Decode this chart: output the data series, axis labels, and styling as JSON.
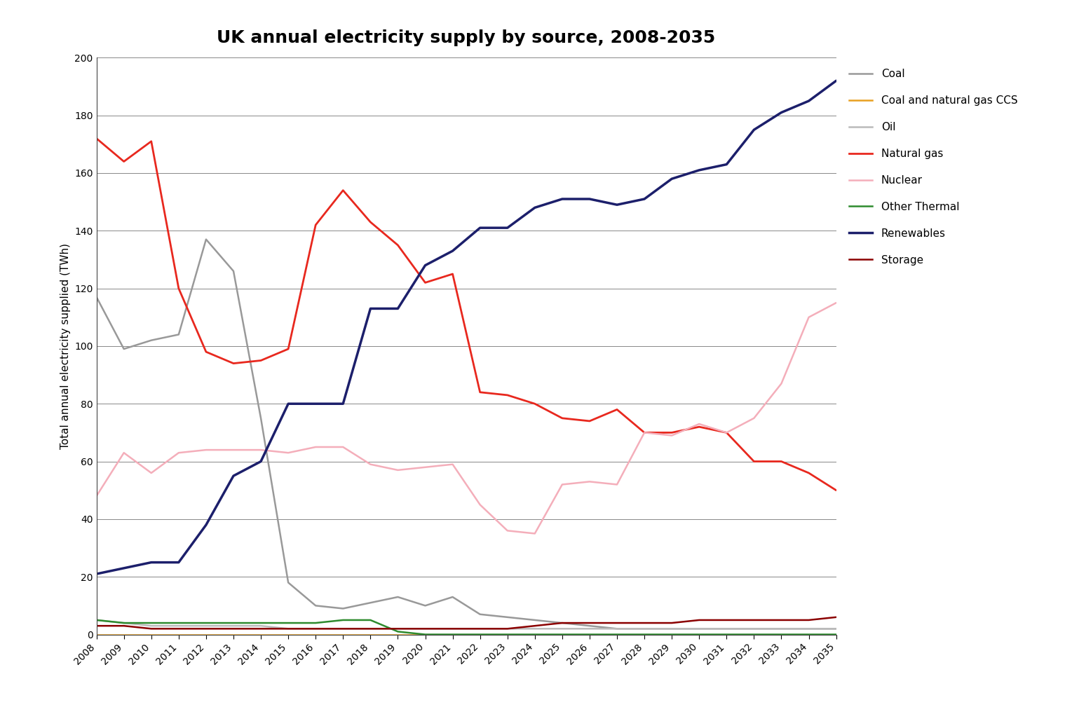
{
  "title": "UK annual electricity supply by source, 2008-2035",
  "ylabel": "Total annual electricity supplied (TWh)",
  "years": [
    2008,
    2009,
    2010,
    2011,
    2012,
    2013,
    2014,
    2015,
    2016,
    2017,
    2018,
    2019,
    2020,
    2021,
    2022,
    2023,
    2024,
    2025,
    2026,
    2027,
    2028,
    2029,
    2030,
    2031,
    2032,
    2033,
    2034,
    2035
  ],
  "ylim": [
    0,
    200
  ],
  "yticks": [
    0,
    20,
    40,
    60,
    80,
    100,
    120,
    140,
    160,
    180,
    200
  ],
  "series": {
    "Coal": {
      "color": "#999999",
      "linewidth": 1.8,
      "values": [
        117,
        99,
        102,
        104,
        137,
        126,
        75,
        18,
        10,
        9,
        11,
        13,
        10,
        13,
        7,
        6,
        5,
        4,
        3,
        2,
        2,
        2,
        2,
        2,
        2,
        2,
        2,
        2
      ]
    },
    "Coal and natural gas CCS": {
      "color": "#E8A020",
      "linewidth": 1.8,
      "values": [
        0,
        0,
        0,
        0,
        0,
        0,
        0,
        0,
        0,
        0,
        0,
        0,
        0,
        0,
        0,
        0,
        0,
        0,
        0,
        0,
        0,
        0,
        0,
        0,
        0,
        0,
        0,
        0
      ]
    },
    "Oil": {
      "color": "#BBBBBB",
      "linewidth": 1.8,
      "values": [
        5,
        4,
        3,
        3,
        3,
        3,
        3,
        2,
        2,
        2,
        2,
        2,
        2,
        2,
        2,
        2,
        2,
        2,
        2,
        2,
        2,
        2,
        2,
        2,
        2,
        2,
        2,
        2
      ]
    },
    "Natural gas": {
      "color": "#E8281E",
      "linewidth": 2.0,
      "values": [
        172,
        164,
        171,
        120,
        98,
        94,
        95,
        99,
        142,
        154,
        143,
        135,
        122,
        125,
        84,
        83,
        80,
        75,
        74,
        78,
        70,
        70,
        72,
        70,
        60,
        60,
        56,
        50
      ]
    },
    "Nuclear": {
      "color": "#F4AEBA",
      "linewidth": 1.8,
      "values": [
        48,
        63,
        56,
        63,
        64,
        64,
        64,
        63,
        65,
        65,
        59,
        57,
        58,
        59,
        45,
        36,
        35,
        52,
        53,
        52,
        70,
        69,
        73,
        70,
        75,
        87,
        110,
        115
      ]
    },
    "Other Thermal": {
      "color": "#2E8B2E",
      "linewidth": 1.8,
      "values": [
        5,
        4,
        4,
        4,
        4,
        4,
        4,
        4,
        4,
        5,
        5,
        1,
        0,
        0,
        0,
        0,
        0,
        0,
        0,
        0,
        0,
        0,
        0,
        0,
        0,
        0,
        0,
        0
      ]
    },
    "Renewables": {
      "color": "#1C1F6B",
      "linewidth": 2.5,
      "values": [
        21,
        23,
        25,
        25,
        38,
        55,
        60,
        80,
        80,
        80,
        113,
        113,
        128,
        133,
        141,
        141,
        148,
        151,
        151,
        149,
        151,
        158,
        161,
        163,
        175,
        181,
        185,
        192
      ]
    },
    "Storage": {
      "color": "#8B0000",
      "linewidth": 1.8,
      "values": [
        3,
        3,
        2,
        2,
        2,
        2,
        2,
        2,
        2,
        2,
        2,
        2,
        2,
        2,
        2,
        2,
        3,
        4,
        4,
        4,
        4,
        4,
        5,
        5,
        5,
        5,
        5,
        6
      ]
    }
  },
  "background_color": "#FFFFFF",
  "grid_color": "#888888",
  "title_fontsize": 18,
  "label_fontsize": 11,
  "tick_fontsize": 10,
  "legend_fontsize": 11
}
